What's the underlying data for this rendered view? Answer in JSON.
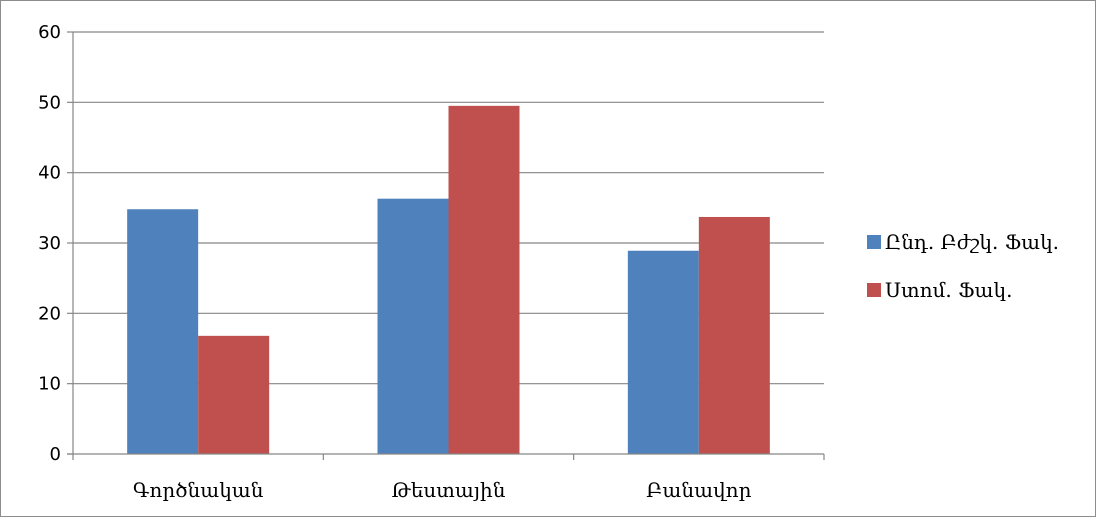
{
  "chart_data": {
    "type": "bar",
    "categories": [
      "Գործնական",
      "Թեստային",
      "Բանավոր"
    ],
    "series": [
      {
        "name": "Ընդ. Բժշկ. Ֆակ.",
        "color": "#4f81bd",
        "values": [
          34.8,
          36.3,
          28.9
        ]
      },
      {
        "name": "Ստոմ. Ֆակ.",
        "color": "#c0504d",
        "values": [
          16.8,
          49.5,
          33.7
        ]
      }
    ],
    "ylim": [
      0,
      60
    ],
    "yticks": [
      0,
      10,
      20,
      30,
      40,
      50,
      60
    ],
    "grid": true,
    "legend": "right",
    "title": "",
    "xlabel": "",
    "ylabel": ""
  }
}
